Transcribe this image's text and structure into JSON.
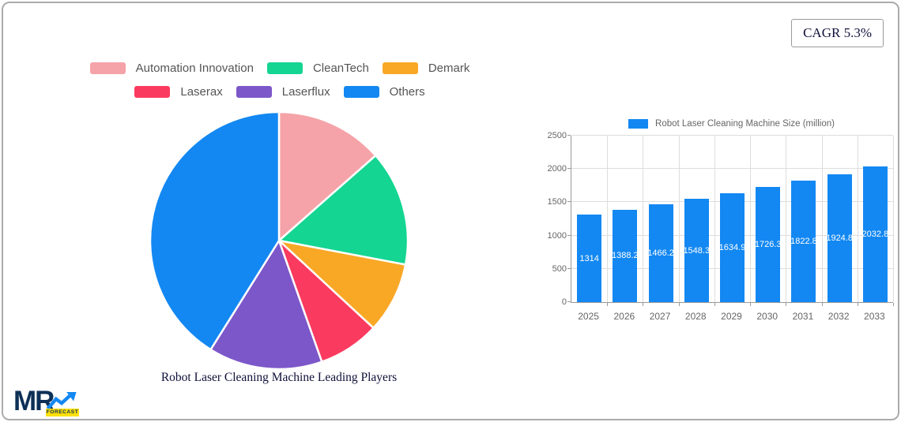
{
  "badge": {
    "label": "CAGR 5.3%"
  },
  "logo": {
    "mr": "MR",
    "forecast": "FORECAST"
  },
  "chart_data": [
    {
      "type": "pie",
      "title": "Robot Laser Cleaning Machine Leading Players",
      "labels": [
        "Automation Innovation",
        "CleanTech",
        "Demark",
        "Laserax",
        "Laserflux",
        "Others"
      ],
      "values": [
        13.5,
        14.5,
        8.9,
        7.7,
        14.3,
        41.1
      ],
      "colors": [
        "#F5A3A8",
        "#15D592",
        "#F9A826",
        "#FB3A5F",
        "#7C57C9",
        "#1388F2"
      ],
      "legend_rows": [
        3,
        3
      ],
      "legend_position": "top",
      "start_angle_deg": 0,
      "direction": "clockwise"
    },
    {
      "type": "bar",
      "legend_label": "Robot Laser Cleaning Machine Size (million)",
      "categories": [
        "2025",
        "2026",
        "2027",
        "2028",
        "2029",
        "2030",
        "2031",
        "2032",
        "2033"
      ],
      "values": [
        1314,
        1388.2,
        1466.2,
        1548.3,
        1634.9,
        1726.3,
        1822.8,
        1924.8,
        2032.8
      ],
      "value_labels": [
        "1314",
        "1388.2",
        "1466.2",
        "1548.3",
        "1634.9",
        "1726.3",
        "1822.8",
        "1924.8",
        "2032.8"
      ],
      "bar_color": "#1388F2",
      "ylim": [
        0,
        2500
      ],
      "ytick_step": 500,
      "yticks": [
        0,
        500,
        1000,
        1500,
        2000,
        2500
      ],
      "grid": true,
      "legend_position": "top"
    }
  ]
}
